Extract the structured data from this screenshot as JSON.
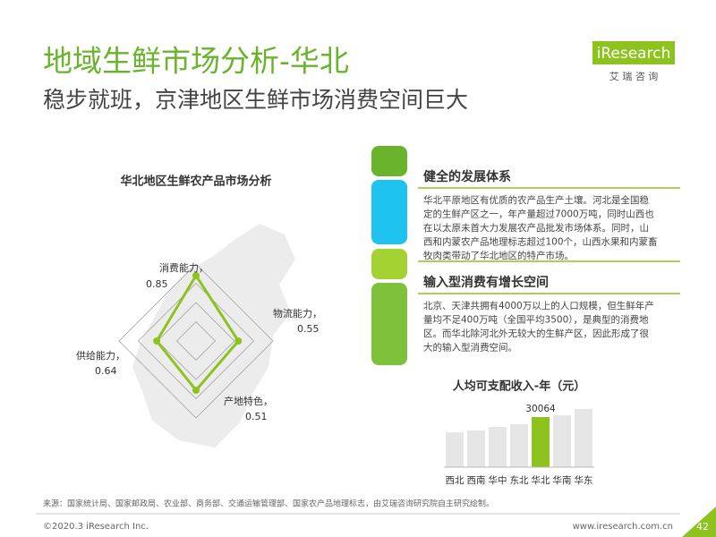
{
  "header": {
    "title": "地域生鲜市场分析-华北",
    "subtitle": "稳步就班，京津地区生鲜市场消费空间巨大",
    "logo": "iResearch",
    "logo_sub": "艾 瑞 咨 询"
  },
  "sections": [
    {
      "heading": "健全的发展体系",
      "lines": [
        "华北平原地区有优质的农产品生产土壤。河北是全国稳",
        "定的生鲜产区之一，年产量超过7000万吨，同时山西也",
        "在以太原未首大力发展农产品批发市场体系。同时，山",
        "西和内蒙农产品地理标志超过100个，山西水果和内蒙畜",
        "牧肉类带动了华北地区的特产市场。"
      ]
    },
    {
      "heading": "输入型消费有增长空间",
      "lines": [
        "北京、天津共拥有4000万以上的人口规模，但生鲜年产",
        "量均不足400万吨（全国平均3500），是典型的消费地",
        "区。而华北除河北外无较大的生鲜产区，因此形成了很",
        "大的输入型消费空间。"
      ]
    }
  ],
  "chart_data": [
    {
      "type": "radar",
      "title": "华北地区生鲜农产品市场分析",
      "categories": [
        "消费能力，",
        "物流能力，",
        "供给能力，",
        "产地特色，"
      ],
      "values": [
        0.85,
        0.55,
        0.64,
        0.51
      ],
      "color": "#8dc21f",
      "rlim": [
        0,
        1
      ],
      "rticks": [
        0.25,
        0.5,
        0.75,
        1
      ]
    },
    {
      "type": "bar",
      "title": "人均可支配收入-年（元）",
      "categories": [
        "西北",
        "西南",
        "华中",
        "东北",
        "华北",
        "华南",
        "华东"
      ],
      "values": [
        20900,
        22000,
        24200,
        25800,
        30064,
        31100,
        34900
      ],
      "value_labels": [
        null,
        null,
        null,
        null,
        "30064",
        null,
        null
      ],
      "colors": [
        "#e6e6e6",
        "#e6e6e6",
        "#e6e6e6",
        "#e6e6e6",
        "#8dc21f",
        "#e6e6e6",
        "#e6e6e6"
      ]
    }
  ],
  "footer": {
    "source": "来源：国家统计局、国家邮政局、农业部、商务部、交通运输管理部、国家农产品地理标志，由艾瑞咨询研究院自主研究绘制。",
    "copyright": "©2020.3 iResearch Inc.",
    "url": "www.iresearch.com.cn",
    "page": "42"
  }
}
